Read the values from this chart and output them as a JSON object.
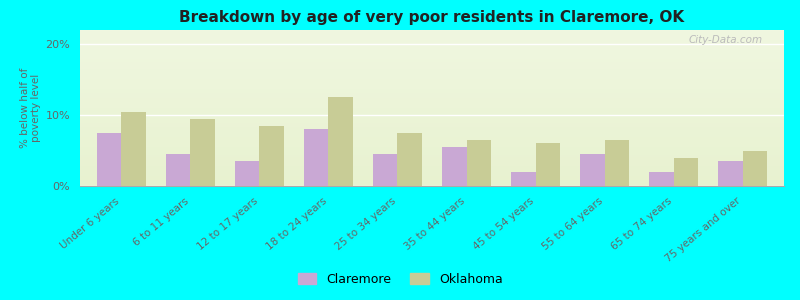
{
  "title": "Breakdown by age of very poor residents in Claremore, OK",
  "categories": [
    "Under 6 years",
    "6 to 11 years",
    "12 to 17 years",
    "18 to 24 years",
    "25 to 34 years",
    "35 to 44 years",
    "45 to 54 years",
    "55 to 64 years",
    "65 to 74 years",
    "75 years and over"
  ],
  "claremore_values": [
    7.5,
    4.5,
    3.5,
    8.0,
    4.5,
    5.5,
    2.0,
    4.5,
    2.0,
    3.5
  ],
  "oklahoma_values": [
    10.5,
    9.5,
    8.5,
    12.5,
    7.5,
    6.5,
    6.0,
    6.5,
    4.0,
    5.0
  ],
  "claremore_color": "#c9a8d4",
  "oklahoma_color": "#c8cc96",
  "ylabel": "% below half of\npoverty level",
  "ylim": [
    0,
    22
  ],
  "yticks": [
    0,
    10,
    20
  ],
  "ytick_labels": [
    "0%",
    "10%",
    "20%"
  ],
  "background_color": "#00ffff",
  "plot_bg_top": "#f0f7e0",
  "plot_bg_bottom": "#e8f2d0",
  "legend_labels": [
    "Claremore",
    "Oklahoma"
  ],
  "bar_width": 0.35,
  "watermark": "City-Data.com"
}
